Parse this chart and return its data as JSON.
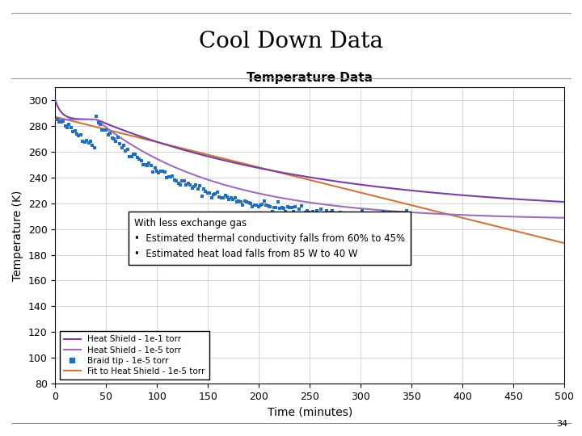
{
  "title": "Cool Down Data",
  "plot_title": "Temperature Data",
  "xlabel": "Time (minutes)",
  "ylabel": "Temperature (K)",
  "xlim": [
    0,
    500
  ],
  "ylim": [
    80,
    310
  ],
  "yticks": [
    80,
    100,
    120,
    140,
    160,
    180,
    200,
    220,
    240,
    260,
    280,
    300
  ],
  "xticks": [
    0,
    50,
    100,
    150,
    200,
    250,
    300,
    350,
    400,
    450,
    500
  ],
  "annotation_title": "With less exchange gas",
  "annotation_bullets": [
    "Estimated thermal conductivity falls from 60% to 45%",
    "Estimated heat load falls from 85 W to 40 W"
  ],
  "legend_entries": [
    {
      "label": "Heat Shield - 1e-1 torr",
      "color": "#7B3F9E"
    },
    {
      "label": "Heat Shield - 1e-5 torr",
      "color": "#9B6FBE"
    },
    {
      "label": "Braid tip - 1e-5 torr",
      "color": "#1E6FBF"
    },
    {
      "label": "Fit to Heat Shield - 1e-5 torr",
      "color": "#C87941"
    }
  ],
  "color_hs1e1": "#7B3F9E",
  "color_hs1e5": "#9B6FBE",
  "color_braid": "#1E6FBF",
  "color_fit": "#C87941",
  "page_number": "34"
}
